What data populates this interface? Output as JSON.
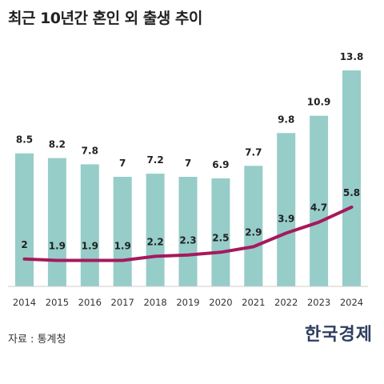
{
  "title": "최근 10년간 혼인 외 출생 추이",
  "source": "자료 : 통계청",
  "brand": "한국경제",
  "colors": {
    "bar": "#96cdc8",
    "line": "#a6195c",
    "axis": "#cccccc"
  },
  "chart_data": {
    "type": "bar",
    "categories": [
      "2014",
      "2015",
      "2016",
      "2017",
      "2018",
      "2019",
      "2020",
      "2021",
      "2022",
      "2023",
      "2024"
    ],
    "series": [
      {
        "type": "bar",
        "values": [
          8.5,
          8.2,
          7.8,
          7,
          7.2,
          7,
          6.9,
          7.7,
          9.8,
          10.9,
          13.8
        ],
        "labels": [
          "8.5",
          "8.2",
          "7.8",
          "7",
          "7.2",
          "7",
          "6.9",
          "7.7",
          "9.8",
          "10.9",
          "13.8"
        ]
      },
      {
        "type": "line",
        "values": [
          2,
          1.9,
          1.9,
          1.9,
          2.2,
          2.3,
          2.5,
          2.9,
          3.9,
          4.7,
          5.8
        ],
        "labels": [
          "2",
          "1.9",
          "1.9",
          "1.9",
          "2.2",
          "2.3",
          "2.5",
          "2.9",
          "3.9",
          "4.7",
          "5.8"
        ]
      }
    ],
    "title": "최근 10년간 혼인 외 출생 추이",
    "xlabel": "",
    "ylabel": "",
    "bar_ylim": [
      0,
      13.8
    ],
    "line_ylim": [
      0,
      15.8
    ],
    "grid": false,
    "legend": "none"
  }
}
